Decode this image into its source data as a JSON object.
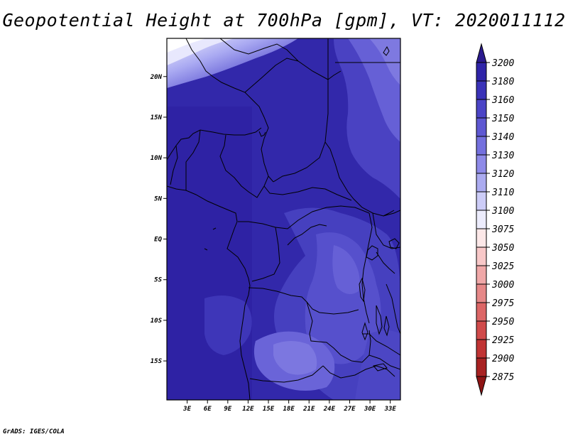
{
  "title": "Geopotential Height at 700hPa [gpm], VT: 2020011112",
  "credit": "GrADS: IGES/COLA",
  "map": {
    "lat_labels": [
      "20N",
      "15N",
      "10N",
      "5N",
      "EQ",
      "5S",
      "10S",
      "15S"
    ],
    "lon_labels": [
      "3E",
      "6E",
      "9E",
      "12E",
      "15E",
      "18E",
      "21E",
      "24E",
      "27E",
      "30E",
      "33E"
    ],
    "lat_range": [
      -19.8,
      24.7
    ],
    "lon_range": [
      0,
      34.5
    ]
  },
  "colorbar": {
    "levels": [
      "3200",
      "3180",
      "3160",
      "3150",
      "3140",
      "3130",
      "3120",
      "3110",
      "3100",
      "3075",
      "3050",
      "3025",
      "3000",
      "2975",
      "2950",
      "2925",
      "2900",
      "2875"
    ],
    "colors": [
      "#2b1a8e",
      "#2f24a8",
      "#3a32b8",
      "#4b44c6",
      "#5e58d2",
      "#7470de",
      "#8e8ae8",
      "#ababf0",
      "#ccccf7",
      "#ececfc",
      "#fce8e8",
      "#f8c8c8",
      "#f0a8a8",
      "#e68888",
      "#dc6666",
      "#d04a4a",
      "#c03434",
      "#a82222",
      "#8e1414"
    ]
  }
}
